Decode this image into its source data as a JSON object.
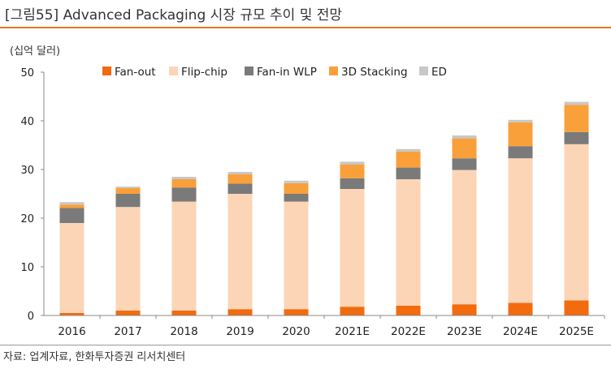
{
  "header": {
    "title": "[그림55]  Advanced Packaging 시장 규모 추이 및 전망",
    "unit": "(십억 달러)"
  },
  "footer": {
    "source": "자료: 업계자료, 한화투자증권 리서치센터"
  },
  "colors": {
    "Fan-out": "#f26b0f",
    "Flip-chip": "#fbd5b5",
    "Fan-in WLP": "#7a7a7a",
    "3D Stacking": "#f9a03a",
    "ED": "#c8c8c8",
    "accent": "#e87722"
  },
  "chart_data": {
    "type": "bar",
    "stacked": true,
    "title": "Advanced Packaging 시장 규모 추이 및 전망",
    "ylabel": "(십억 달러)",
    "xlabel": "",
    "ylim": [
      0,
      50
    ],
    "yticks": [
      0,
      10,
      20,
      30,
      40,
      50
    ],
    "grid": false,
    "legend_position": "top",
    "categories": [
      "2016",
      "2017",
      "2018",
      "2019",
      "2020",
      "2021E",
      "2022E",
      "2023E",
      "2024E",
      "2025E"
    ],
    "series": [
      {
        "name": "Fan-out",
        "values": [
          0.5,
          1.0,
          1.0,
          1.3,
          1.3,
          1.8,
          2.0,
          2.3,
          2.6,
          3.1
        ]
      },
      {
        "name": "Flip-chip",
        "values": [
          18.5,
          21.3,
          22.4,
          23.7,
          22.1,
          24.2,
          26.0,
          27.6,
          29.7,
          32.1
        ]
      },
      {
        "name": "Fan-in WLP",
        "values": [
          3.1,
          2.7,
          2.9,
          2.1,
          1.6,
          2.2,
          2.4,
          2.4,
          2.5,
          2.5
        ]
      },
      {
        "name": "3D Stacking",
        "values": [
          0.7,
          1.2,
          1.7,
          1.9,
          2.2,
          2.8,
          3.3,
          4.1,
          4.9,
          5.6
        ]
      },
      {
        "name": "ED",
        "values": [
          0.5,
          0.3,
          0.5,
          0.5,
          0.5,
          0.6,
          0.5,
          0.6,
          0.5,
          0.6
        ]
      }
    ]
  }
}
